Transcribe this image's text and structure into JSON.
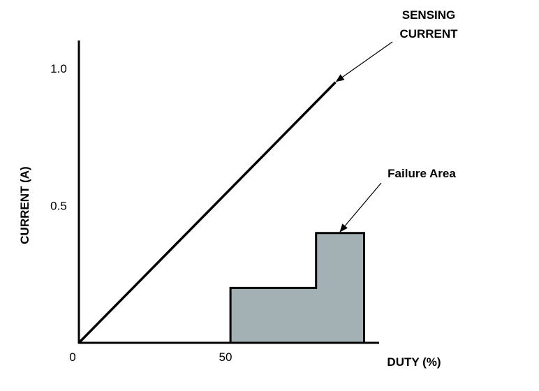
{
  "chart_data": {
    "type": "line",
    "title": "",
    "xlabel": "DUTY (%)",
    "ylabel": "CURRENT (A)",
    "xlim": [
      0,
      100
    ],
    "ylim": [
      0,
      1.1
    ],
    "grid": false,
    "x_ticks": [
      {
        "value": 0,
        "label": "0"
      },
      {
        "value": 50,
        "label": "50"
      }
    ],
    "y_ticks": [
      {
        "value": 0.5,
        "label": "0.5"
      },
      {
        "value": 1.0,
        "label": "1.0"
      }
    ],
    "series": [
      {
        "name": "",
        "x": [
          0,
          85.5
        ],
        "y": [
          0,
          0.95
        ],
        "color": "#000000"
      }
    ],
    "regions": [
      {
        "label": "Failure Area",
        "polygon": [
          [
            50.5,
            0
          ],
          [
            50.5,
            0.2
          ],
          [
            79,
            0.2
          ],
          [
            79,
            0.4
          ],
          [
            95,
            0.4
          ],
          [
            95,
            0
          ]
        ],
        "fill": "#a3b0b4",
        "stroke": "#000000"
      }
    ],
    "annotations": [
      {
        "text_lines": [
          "SENSING",
          "CURRENT"
        ],
        "arrow_to": [
          85.5,
          0.95
        ],
        "target": "line"
      },
      {
        "text_lines": [
          "Failure Area"
        ],
        "arrow_to": [
          87,
          0.4
        ],
        "target": "region"
      }
    ]
  }
}
